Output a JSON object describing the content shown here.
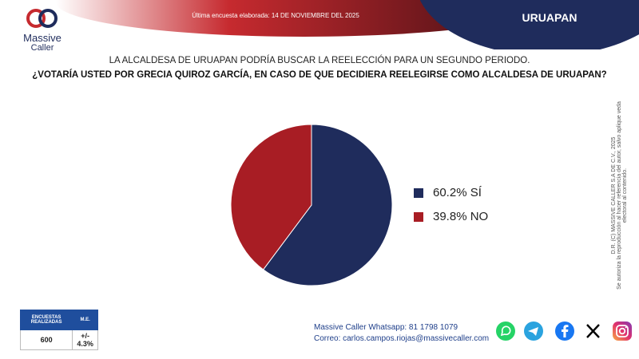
{
  "header": {
    "update_label": "Última encuesta elaborada: 14 DE NOVIEMBRE DEL 2025",
    "region": "URUAPAN"
  },
  "brand": {
    "word1": "Massive",
    "word2": "Caller"
  },
  "question": {
    "line1": "LA ALCALDESA DE URUAPAN PODRÍA BUSCAR LA REELECCIÓN PARA UN SEGUNDO PERIODO.",
    "line2": "¿VOTARÍA USTED POR GRECIA QUIROZ GARCÍA, EN CASO DE QUE DECIDIERA REELEGIRSE COMO ALCALDESA DE URUAPAN?"
  },
  "chart_data": {
    "type": "pie",
    "slices": [
      {
        "label": "60.2% SÍ",
        "value": 60.2,
        "color": "#1f2c5c"
      },
      {
        "label": "39.8% NO",
        "value": 39.8,
        "color": "#a81d24"
      }
    ],
    "legend_placement": "right"
  },
  "side_note": {
    "line1": "D.R. (C) MASSIVE CALLER S.A DE C.V., 2025",
    "line2": "Se autoriza la reproducción al hacer referencia del autor, salvo aplique veda electoral al contenido."
  },
  "stats": {
    "col1_header": "ENCUESTAS REALIZADAS",
    "col2_header": "M.E.",
    "col1_value": "600",
    "col2_value": "+/- 4.3%"
  },
  "contact": {
    "whatsapp": "Massive Caller Whatsapp: 81 1798 1079",
    "email": "Correo: carlos.campos.riojas@massivecaller.com"
  },
  "social": [
    "whatsapp-icon",
    "telegram-icon",
    "facebook-icon",
    "x-icon",
    "instagram-icon"
  ],
  "colors": {
    "navy": "#1f2c5c",
    "red": "#a81d24",
    "blue": "#1f4e9d"
  }
}
